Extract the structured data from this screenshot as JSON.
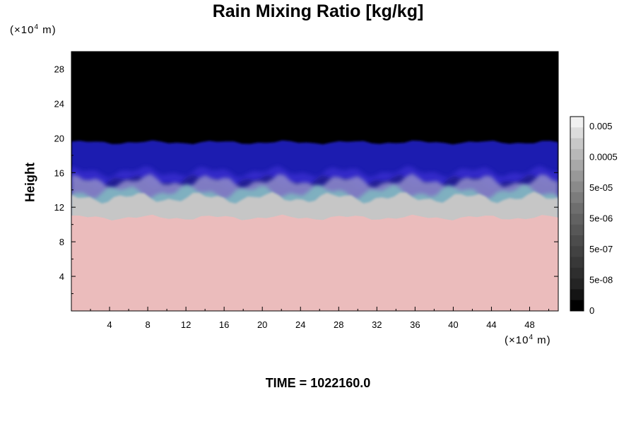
{
  "chart_data": {
    "type": "heatmap",
    "title": "Rain Mixing Ratio [kg/kg]",
    "ylabel": "Height",
    "xlabel": "",
    "y_unit": "(×10",
    "y_unit_exp": "4",
    "y_unit_tail": " m)",
    "x_unit": "(×10",
    "x_unit_exp": "4",
    "x_unit_tail": " m)",
    "xlim": [
      0,
      51
    ],
    "ylim": [
      0,
      30
    ],
    "x_ticks": [
      "4",
      "8",
      "12",
      "16",
      "20",
      "24",
      "28",
      "32",
      "36",
      "40",
      "44",
      "48"
    ],
    "y_ticks": [
      "4",
      "8",
      "12",
      "16",
      "20",
      "24",
      "28"
    ],
    "colorbar": {
      "labels": [
        "0.005",
        "0.0005",
        "5e-05",
        "5e-06",
        "5e-07",
        "5e-08",
        "0"
      ],
      "colors": [
        "#f0f0f0",
        "#dcdcdc",
        "#c8c8c8",
        "#b8b8b8",
        "#a8a8a8",
        "#989898",
        "#8a8a8a",
        "#7c7c7c",
        "#6e6e6e",
        "#626262",
        "#575757",
        "#4c4c4c",
        "#424242",
        "#383838",
        "#2e2e2e",
        "#242424",
        "#141414",
        "#000000"
      ]
    },
    "regions": [
      {
        "name": "zero",
        "color": "#000000",
        "y_from": 19.5,
        "y_to": 30
      },
      {
        "name": "blue-layer",
        "color": "#1a1ab0",
        "y_from": 14.5,
        "y_to": 19.5
      },
      {
        "name": "cyan-layer",
        "color": "#7fb6c0",
        "y_from": 12.5,
        "y_to": 15
      },
      {
        "name": "gray-layer",
        "color": "#c6c6c6",
        "y_from": 10.5,
        "y_to": 13.5
      },
      {
        "name": "pink-layer",
        "color": "#ebbcbc",
        "y_from": 0,
        "y_to": 11
      }
    ]
  },
  "time_label": "TIME = 1022160.0"
}
